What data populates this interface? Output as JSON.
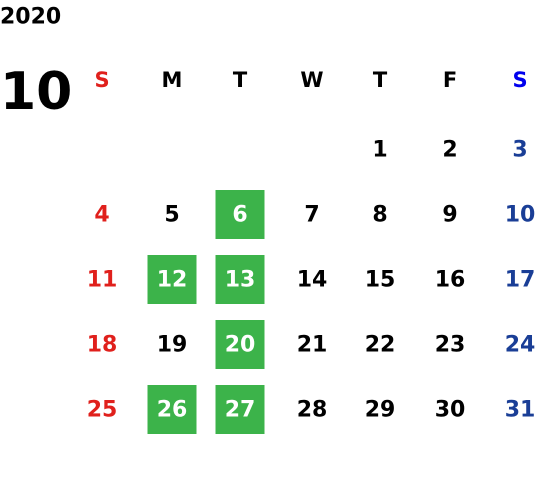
{
  "year": "2020",
  "month": "10",
  "weekdays": [
    "S",
    "M",
    "T",
    "W",
    "T",
    "F",
    "S"
  ],
  "weeks": [
    [
      null,
      null,
      null,
      null,
      1,
      2,
      3
    ],
    [
      4,
      5,
      6,
      7,
      8,
      9,
      10
    ],
    [
      11,
      12,
      13,
      14,
      15,
      16,
      17
    ],
    [
      18,
      19,
      20,
      21,
      22,
      23,
      24
    ],
    [
      25,
      26,
      27,
      28,
      29,
      30,
      31
    ]
  ],
  "highlighted": [
    6,
    12,
    13,
    20,
    26,
    27
  ]
}
